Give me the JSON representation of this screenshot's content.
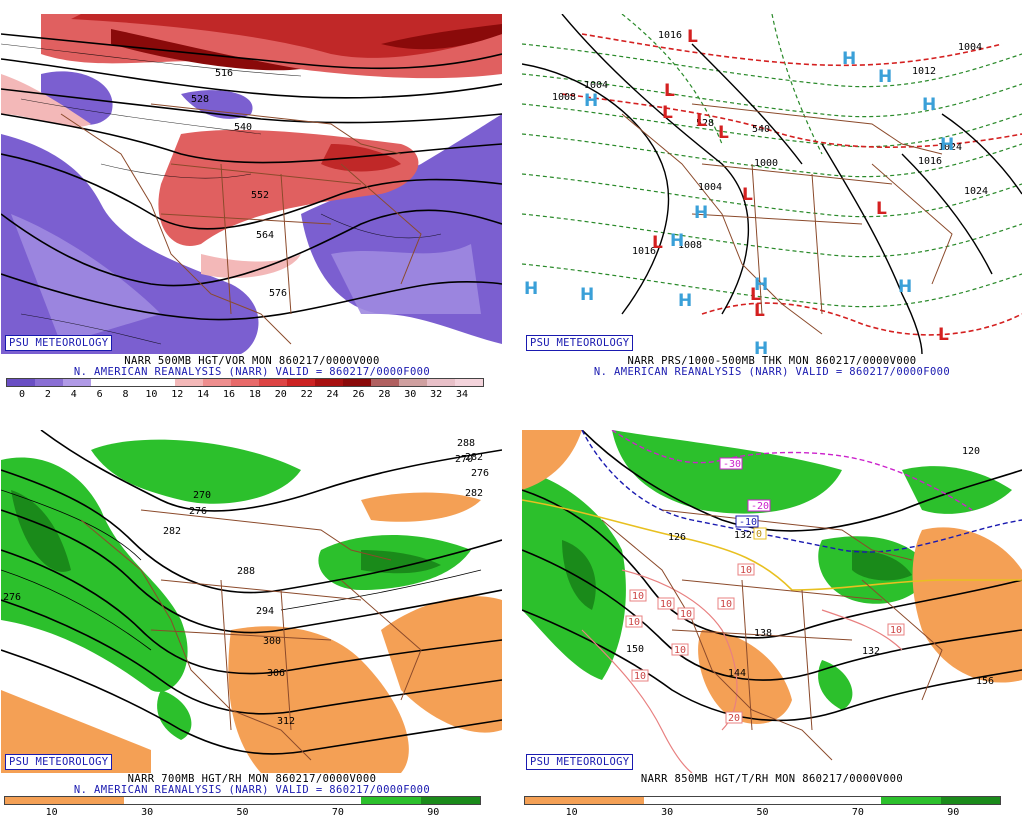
{
  "panels": [
    {
      "id": "p1",
      "logo": "PSU METEOROLOGY",
      "caption1": "NARR 500MB HGT/VOR MON 860217/0000V000",
      "caption2": "N. AMERICAN REANALYSIS (NARR) VALID = 860217/0000F000",
      "contour_labels": [
        "516",
        "528",
        "540",
        "552",
        "564",
        "576"
      ],
      "colorbar_ticks": [
        "0",
        "2",
        "4",
        "6",
        "8",
        "10",
        "12",
        "14",
        "16",
        "18",
        "20",
        "22",
        "24",
        "26",
        "28",
        "30",
        "32",
        "34"
      ],
      "colorbar_colors": [
        "#6a4fc4",
        "#8a6fd4",
        "#b09ae6",
        "#ffffff",
        "#ffffff",
        "#ffffff",
        "#f3b8b8",
        "#ee8e8e",
        "#e86a6a",
        "#dd4444",
        "#cc2222",
        "#a81010",
        "#8a0a0a",
        "#b06060",
        "#cfa0a0",
        "#e8c0c8",
        "#f4d4dc"
      ]
    },
    {
      "id": "p2",
      "logo": "PSU METEOROLOGY",
      "caption1": "NARR PRS/1000-500MB THK MON 860217/0000V000",
      "caption2": "N. AMERICAN REANALYSIS (NARR) VALID = 860217/0000F000",
      "isobar_labels": [
        "1016",
        "1004",
        "1008",
        "1000",
        "1004",
        "1008",
        "1016",
        "1024",
        "1012",
        "1016",
        "1024",
        "540",
        "528",
        "1004"
      ],
      "high_marker": "H",
      "low_marker": "L",
      "high_color": "#3aa0d8",
      "low_color": "#d42020"
    },
    {
      "id": "p3",
      "logo": "PSU METEOROLOGY",
      "caption1": "NARR 700MB HGT/RH MON 860217/0000V000",
      "caption2": "N. AMERICAN REANALYSIS (NARR) VALID = 860217/0000F000",
      "contour_labels": [
        "270",
        "276",
        "282",
        "288",
        "294",
        "300",
        "306",
        "312",
        "276",
        "282",
        "288",
        "270",
        "282",
        "276"
      ],
      "colorbar_ticks": [
        "10",
        "30",
        "50",
        "70",
        "90"
      ],
      "colorbar_colors": [
        "#f4a055",
        "#f4a055",
        "#ffffff",
        "#ffffff",
        "#ffffff",
        "#ffffff",
        "#2cc02c",
        "#1a8a1a"
      ]
    },
    {
      "id": "p4",
      "logo": "PSU METEOROLOGY",
      "caption1": "NARR 850MB HGT/T/RH MON 860217/0000V000",
      "contour_labels": [
        "126",
        "132",
        "138",
        "144",
        "150",
        "156",
        "132",
        "120"
      ],
      "temp_labels": [
        "-30",
        "-20",
        "-10",
        "10",
        "10",
        "10",
        "10",
        "10",
        "10",
        "10",
        "10",
        "10",
        "20",
        "0"
      ],
      "colorbar_ticks": [
        "10",
        "30",
        "50",
        "70",
        "90"
      ],
      "colorbar_colors": [
        "#f4a055",
        "#f4a055",
        "#ffffff",
        "#ffffff",
        "#ffffff",
        "#ffffff",
        "#2cc02c",
        "#1a8a1a"
      ]
    }
  ]
}
